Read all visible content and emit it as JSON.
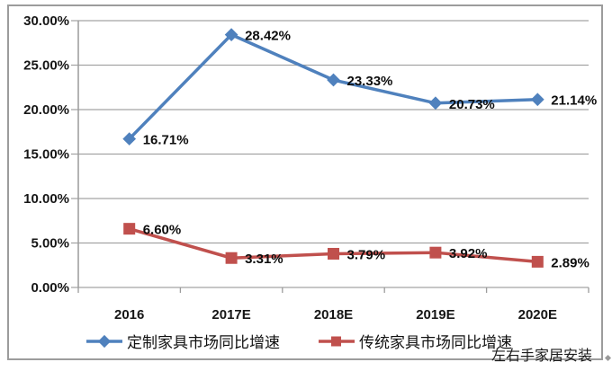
{
  "chart_data": {
    "type": "line",
    "title": "",
    "xlabel": "",
    "ylabel": "",
    "categories": [
      "2016",
      "2017E",
      "2018E",
      "2019E",
      "2020E"
    ],
    "series": [
      {
        "name": "定制家具市场同比增速",
        "color": "#4F81BD",
        "marker": "diamond",
        "values": [
          16.71,
          28.42,
          23.33,
          20.73,
          21.14
        ],
        "point_labels": [
          "16.71%",
          "28.42%",
          "23.33%",
          "20.73%",
          "21.14%"
        ]
      },
      {
        "name": "传统家具市场同比增速",
        "color": "#C0504D",
        "marker": "square",
        "values": [
          6.6,
          3.31,
          3.79,
          3.92,
          2.89
        ],
        "point_labels": [
          "6.60%",
          "3.31%",
          "3.79%",
          "3.92%",
          "2.89%"
        ]
      }
    ],
    "ylim": [
      0,
      30
    ],
    "y_tick_step": 5,
    "y_tick_labels": [
      "0.00%",
      "5.00%",
      "10.00%",
      "15.00%",
      "20.00%",
      "25.00%",
      "30.00%"
    ],
    "grid": true,
    "legend_position": "bottom"
  },
  "colors": {
    "grid": "#a3a3a3",
    "axis": "#9c9c9c",
    "frame_border": "#9c9c9c"
  },
  "watermark": "左右手家居安装"
}
